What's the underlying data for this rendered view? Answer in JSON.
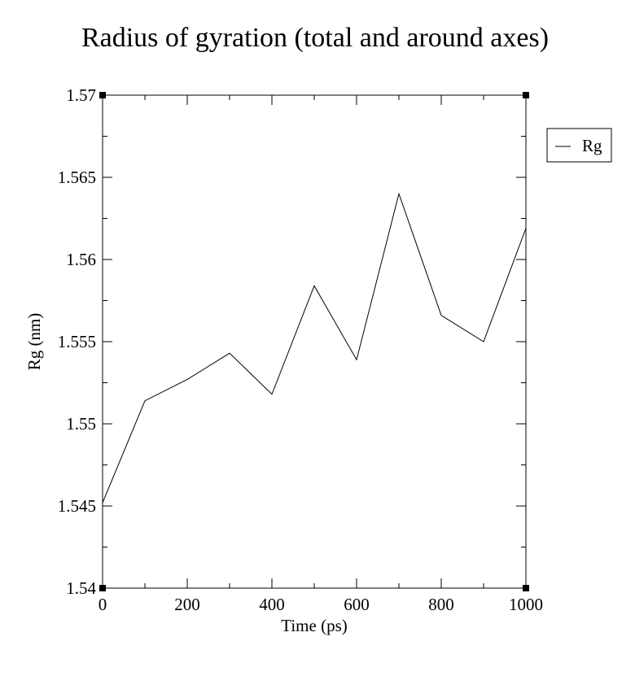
{
  "chart_data": {
    "type": "line",
    "title": "Radius of gyration (total and around axes)",
    "xlabel": "Time (ps)",
    "ylabel": "Rg (nm)",
    "xlim": [
      0,
      1000
    ],
    "ylim": [
      1.54,
      1.57
    ],
    "x_ticks": [
      "0",
      "200",
      "400",
      "600",
      "800",
      "1000"
    ],
    "y_ticks": [
      "1.54",
      "1.545",
      "1.55",
      "1.555",
      "1.56",
      "1.565",
      "1.57"
    ],
    "grid": false,
    "legend_position": "top-right outside",
    "series": [
      {
        "name": "Rg",
        "color": "#000000",
        "x": [
          0,
          100,
          200,
          300,
          400,
          500,
          600,
          700,
          800,
          900,
          1000
        ],
        "y": [
          1.5452,
          1.5514,
          1.5527,
          1.5543,
          1.5518,
          1.5584,
          1.5539,
          1.564,
          1.5566,
          1.555,
          1.5619
        ]
      }
    ]
  }
}
